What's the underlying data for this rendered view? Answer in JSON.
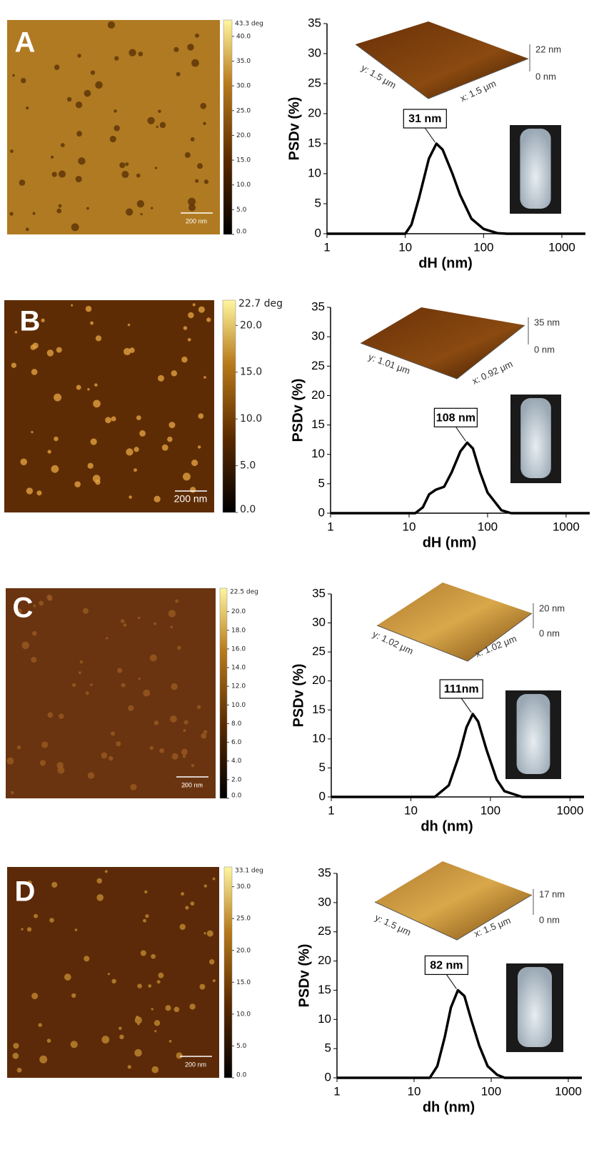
{
  "chart_data": [
    {
      "type": "line",
      "panel": "A",
      "x_label": "dH (nm)",
      "y_label": "PSDv (%)",
      "log_x": true,
      "xlim": [
        1,
        2000
      ],
      "xticks": [
        1,
        10,
        100,
        1000
      ],
      "ylim": [
        0,
        35
      ],
      "yticks": [
        0,
        5,
        10,
        15,
        20,
        25,
        30,
        35
      ],
      "x": [
        1,
        10,
        12,
        15,
        20,
        25,
        30,
        40,
        50,
        70,
        100,
        150,
        200,
        2000
      ],
      "values": [
        0,
        0,
        1.5,
        6,
        12.5,
        15,
        14,
        10,
        6.5,
        2.5,
        0.8,
        0.1,
        0,
        0
      ],
      "color": "#000000",
      "annotation": "31 nm",
      "afm": {
        "colorbar_title": "43.3 deg",
        "colorbar_lim": [
          0,
          43.3
        ],
        "scale_bar": "200 nm",
        "colorbar_ticks": [
          {
            "value": 40,
            "label": "40.0"
          },
          {
            "value": 35,
            "label": "35.0"
          },
          {
            "value": 30,
            "label": "30.0"
          },
          {
            "value": 25,
            "label": "25.0"
          },
          {
            "value": 20,
            "label": "20.0"
          },
          {
            "value": 15,
            "label": "15.0"
          },
          {
            "value": 10,
            "label": "10.0"
          },
          {
            "value": 5,
            "label": "5.0"
          },
          {
            "value": 0,
            "label": "0.0"
          }
        ]
      },
      "inset": {
        "x_size": "x: 1.5 μm",
        "y_size": "y: 1.5 μm",
        "z_top": "22 nm",
        "z_bottom": "0 nm"
      }
    },
    {
      "type": "line",
      "panel": "B",
      "x_label": "dH (nm)",
      "y_label": "PSDv (%)",
      "log_x": true,
      "xlim": [
        1,
        2000
      ],
      "xticks": [
        1,
        10,
        100,
        1000
      ],
      "ylim": [
        0,
        35
      ],
      "yticks": [
        0,
        5,
        10,
        15,
        20,
        25,
        30,
        35
      ],
      "x": [
        1,
        12,
        15,
        18,
        22,
        28,
        35,
        45,
        55,
        65,
        80,
        100,
        150,
        200,
        2000
      ],
      "values": [
        0,
        0,
        1,
        3.2,
        4,
        4.5,
        7,
        10.5,
        12,
        11,
        7,
        3.5,
        0.5,
        0,
        0
      ],
      "color": "#000000",
      "annotation": "108 nm",
      "afm": {
        "colorbar_title": "22.7 deg",
        "colorbar_lim": [
          0,
          22.7
        ],
        "scale_bar": "200 nm",
        "colorbar_ticks": [
          {
            "value": 20,
            "label": "20.0"
          },
          {
            "value": 15,
            "label": "15.0"
          },
          {
            "value": 10,
            "label": "10.0"
          },
          {
            "value": 5,
            "label": "5.0"
          },
          {
            "value": 0,
            "label": "0.0"
          }
        ]
      },
      "inset": {
        "x_size": "x: 0.92 μm",
        "y_size": "y: 1.01 μm",
        "z_top": "35 nm",
        "z_bottom": "0 nm"
      }
    },
    {
      "type": "line",
      "panel": "C",
      "x_label": "dh (nm)",
      "y_label": "PSDv (%)",
      "log_x": true,
      "xlim": [
        1,
        1500
      ],
      "xticks": [
        1,
        10,
        100,
        1000
      ],
      "ylim": [
        0,
        35
      ],
      "yticks": [
        0,
        5,
        10,
        15,
        20,
        25,
        30,
        35
      ],
      "x": [
        1,
        20,
        30,
        40,
        50,
        60,
        70,
        90,
        120,
        150,
        250,
        1500
      ],
      "values": [
        0,
        0,
        2,
        7,
        12,
        14.3,
        13,
        8,
        3,
        1,
        0,
        0
      ],
      "color": "#000000",
      "annotation": "111nm",
      "afm": {
        "colorbar_title": "22.5 deg",
        "colorbar_lim": [
          0,
          22.5
        ],
        "scale_bar": "200 nm",
        "colorbar_ticks": [
          {
            "value": 20,
            "label": "20.0"
          },
          {
            "value": 18,
            "label": "18.0"
          },
          {
            "value": 16,
            "label": "16.0"
          },
          {
            "value": 14,
            "label": "14.0"
          },
          {
            "value": 12,
            "label": "12.0"
          },
          {
            "value": 10,
            "label": "10.0"
          },
          {
            "value": 8,
            "label": "8.0"
          },
          {
            "value": 6,
            "label": "6.0"
          },
          {
            "value": 4,
            "label": "4.0"
          },
          {
            "value": 2,
            "label": "2.0"
          },
          {
            "value": 0,
            "label": "0.0"
          }
        ]
      },
      "inset": {
        "x_size": "x: 1.02 μm",
        "y_size": "y: 1.02 μm",
        "z_top": "20 nm",
        "z_bottom": "0 nm"
      }
    },
    {
      "type": "line",
      "panel": "D",
      "x_label": "dh (nm)",
      "y_label": "PSDv (%)",
      "log_x": true,
      "xlim": [
        1,
        1500
      ],
      "xticks": [
        1,
        10,
        100,
        1000
      ],
      "ylim": [
        0,
        35
      ],
      "yticks": [
        0,
        5,
        10,
        15,
        20,
        25,
        30,
        35
      ],
      "x": [
        1,
        16,
        20,
        25,
        30,
        37,
        45,
        55,
        70,
        90,
        120,
        150,
        1500
      ],
      "values": [
        0,
        0,
        2,
        7,
        12,
        15,
        14,
        10,
        5.5,
        2,
        0.5,
        0,
        0
      ],
      "color": "#000000",
      "annotation": "82 nm",
      "afm": {
        "colorbar_title": "33.1 deg",
        "colorbar_lim": [
          0,
          33.1
        ],
        "scale_bar": "200 nm",
        "colorbar_ticks": [
          {
            "value": 30,
            "label": "30.0"
          },
          {
            "value": 25,
            "label": "25.0"
          },
          {
            "value": 20,
            "label": "20.0"
          },
          {
            "value": 15,
            "label": "15.0"
          },
          {
            "value": 10,
            "label": "10.0"
          },
          {
            "value": 5,
            "label": "5.0"
          },
          {
            "value": 0,
            "label": "0.0"
          }
        ]
      },
      "inset": {
        "x_size": "x: 1.5 μm",
        "y_size": "y: 1.5 μm",
        "z_top": "17 nm",
        "z_bottom": "0 nm"
      }
    }
  ]
}
